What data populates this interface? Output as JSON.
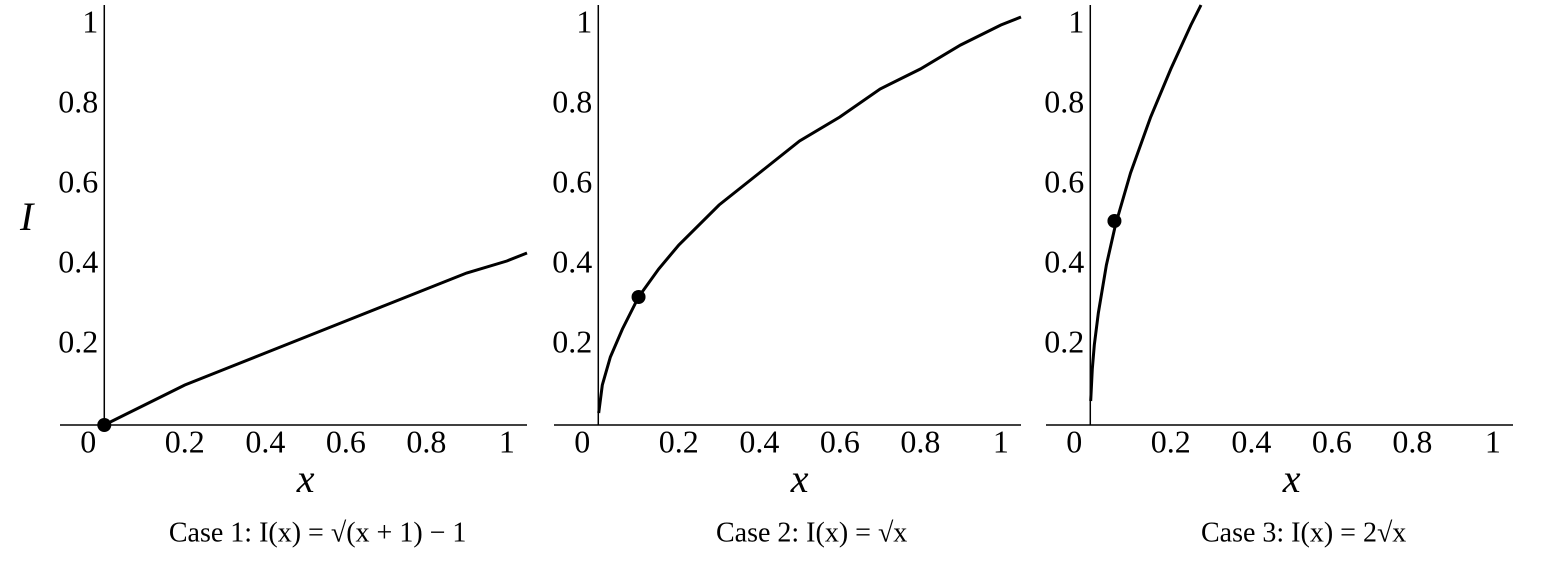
{
  "chart_data": [
    {
      "type": "line",
      "caption": "Case 1:  I(x) = √(x + 1) − 1",
      "xlabel": "x",
      "ylabel": "I",
      "xlim": [
        -0.11,
        1.05
      ],
      "ylim": [
        0,
        1.05
      ],
      "xticks": [
        0,
        0.2,
        0.4,
        0.6,
        0.8,
        1
      ],
      "yticks": [
        0.2,
        0.4,
        0.6,
        0.8,
        1
      ],
      "series": [
        {
          "color": "#000000",
          "x": [
            0,
            0.1,
            0.2,
            0.3,
            0.4,
            0.5,
            0.6,
            0.7,
            0.8,
            0.9,
            1,
            1.05
          ],
          "values": [
            0,
            0.05,
            0.1,
            0.14,
            0.18,
            0.22,
            0.26,
            0.3,
            0.34,
            0.38,
            0.41,
            0.43
          ]
        }
      ],
      "points": {
        "x": [
          0
        ],
        "values": [
          0
        ]
      }
    },
    {
      "type": "line",
      "caption": "Case 2:  I(x) = √x",
      "xlabel": "x",
      "xlim": [
        -0.11,
        1.05
      ],
      "ylim": [
        0,
        1.05
      ],
      "xticks": [
        0,
        0.2,
        0.4,
        0.6,
        0.8,
        1
      ],
      "yticks": [
        0.2,
        0.4,
        0.6,
        0.8,
        1
      ],
      "series": [
        {
          "color": "#000000",
          "x": [
            0.001,
            0.01,
            0.03,
            0.06,
            0.1,
            0.15,
            0.2,
            0.3,
            0.4,
            0.5,
            0.6,
            0.7,
            0.8,
            0.9,
            1,
            1.05
          ],
          "values": [
            0.03,
            0.1,
            0.17,
            0.24,
            0.32,
            0.39,
            0.45,
            0.55,
            0.63,
            0.71,
            0.77,
            0.84,
            0.89,
            0.95,
            1,
            1.02
          ]
        }
      ],
      "points": {
        "x": [
          0.1
        ],
        "values": [
          0.32
        ]
      }
    },
    {
      "type": "line",
      "caption": "Case 3:  I(x) = 2√x",
      "xlabel": "x",
      "xlim": [
        -0.11,
        1.05
      ],
      "ylim": [
        0,
        1.05
      ],
      "xticks": [
        0,
        0.2,
        0.4,
        0.6,
        0.8,
        1
      ],
      "yticks": [
        0.2,
        0.4,
        0.6,
        0.8,
        1
      ],
      "series": [
        {
          "color": "#000000",
          "x": [
            0.001,
            0.005,
            0.01,
            0.02,
            0.04,
            0.0625,
            0.1,
            0.15,
            0.2,
            0.25,
            0.275
          ],
          "values": [
            0.06,
            0.14,
            0.2,
            0.28,
            0.4,
            0.5,
            0.63,
            0.77,
            0.89,
            1,
            1.05
          ]
        }
      ],
      "points": {
        "x": [
          0.06
        ],
        "values": [
          0.51
        ]
      }
    }
  ]
}
